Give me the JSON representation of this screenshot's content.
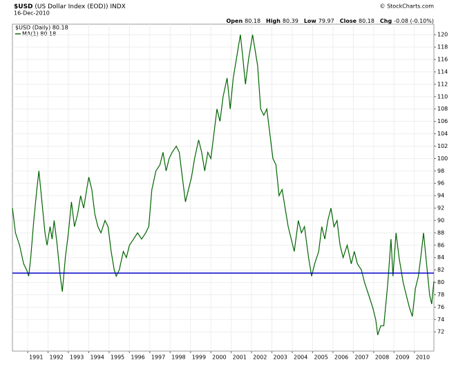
{
  "chart_data": {
    "type": "line",
    "title": "$USD",
    "subtitle": "(US Dollar Index (EOD))",
    "exchange": "INDX",
    "date": "16-Dec-2010",
    "source": "© StockCharts.com",
    "quote": [
      {
        "label": "Open",
        "value": "80.18"
      },
      {
        "label": "High",
        "value": "80.39"
      },
      {
        "label": "Low",
        "value": "79.97"
      },
      {
        "label": "Close",
        "value": "80.18"
      },
      {
        "label": "Chg",
        "value": "-0.08 (-0.10%)"
      }
    ],
    "legend": [
      "$USD (Daily) 80.18",
      "MA(1) 80.18"
    ],
    "grid": true,
    "hline": {
      "value": 81.5,
      "color": "#0000cc"
    },
    "xlim": [
      1990.25,
      2010.96
    ],
    "xticks": [
      1991,
      1992,
      1993,
      1994,
      1995,
      1996,
      1997,
      1998,
      1999,
      2000,
      2001,
      2002,
      2003,
      2004,
      2005,
      2006,
      2007,
      2008,
      2009,
      2010
    ],
    "ylim": [
      68.9,
      121.7
    ],
    "yticks": [
      72,
      74,
      76,
      78,
      80,
      82,
      84,
      86,
      88,
      90,
      92,
      94,
      96,
      98,
      100,
      102,
      104,
      106,
      108,
      110,
      112,
      114,
      116,
      118,
      120
    ],
    "series": [
      {
        "name": "$USD (Daily)",
        "color": "#006400",
        "x": [
          1990.25,
          1990.4,
          1990.6,
          1990.8,
          1990.95,
          1991.05,
          1991.15,
          1991.3,
          1991.45,
          1991.55,
          1991.7,
          1991.85,
          1991.95,
          1992.1,
          1992.2,
          1992.3,
          1992.45,
          1992.6,
          1992.7,
          1992.85,
          1993.0,
          1993.15,
          1993.3,
          1993.45,
          1993.6,
          1993.75,
          1993.9,
          1994.0,
          1994.15,
          1994.3,
          1994.45,
          1994.6,
          1994.8,
          1994.95,
          1995.1,
          1995.25,
          1995.35,
          1995.5,
          1995.7,
          1995.85,
          1996.0,
          1996.2,
          1996.4,
          1996.6,
          1996.8,
          1996.95,
          1997.1,
          1997.3,
          1997.5,
          1997.65,
          1997.8,
          1997.95,
          1998.1,
          1998.3,
          1998.45,
          1998.6,
          1998.75,
          1998.9,
          1999.05,
          1999.2,
          1999.4,
          1999.55,
          1999.7,
          1999.85,
          2000.0,
          2000.15,
          2000.3,
          2000.45,
          2000.6,
          2000.8,
          2000.95,
          2001.1,
          2001.25,
          2001.45,
          2001.55,
          2001.7,
          2001.85,
          2002.05,
          2002.15,
          2002.3,
          2002.45,
          2002.6,
          2002.75,
          2002.9,
          2003.05,
          2003.2,
          2003.35,
          2003.5,
          2003.65,
          2003.8,
          2003.95,
          2004.1,
          2004.3,
          2004.45,
          2004.6,
          2004.8,
          2004.95,
          2005.1,
          2005.3,
          2005.45,
          2005.6,
          2005.75,
          2005.9,
          2006.05,
          2006.2,
          2006.35,
          2006.5,
          2006.7,
          2006.9,
          2007.05,
          2007.2,
          2007.4,
          2007.55,
          2007.75,
          2007.95,
          2008.1,
          2008.2,
          2008.35,
          2008.5,
          2008.7,
          2008.85,
          2008.95,
          2009.1,
          2009.25,
          2009.45,
          2009.6,
          2009.75,
          2009.9,
          2010.05,
          2010.2,
          2010.35,
          2010.45,
          2010.6,
          2010.75,
          2010.85,
          2010.96
        ],
        "values": [
          92,
          88,
          86,
          83,
          82,
          81,
          84,
          90,
          95,
          98,
          93,
          88,
          86,
          89,
          87,
          90,
          86,
          81,
          78.5,
          84,
          88,
          93,
          89,
          91,
          94,
          92,
          95,
          97,
          95,
          91,
          89,
          88,
          90,
          89,
          85,
          82,
          81,
          82,
          85,
          84,
          86,
          87,
          88,
          87,
          88,
          89,
          95,
          98,
          99,
          101,
          98,
          100,
          101,
          102,
          101,
          97,
          93,
          95,
          97,
          100,
          103,
          101,
          98,
          101,
          100,
          104,
          108,
          106,
          110,
          113,
          108,
          113,
          116,
          120,
          117,
          112,
          116,
          120,
          118,
          115,
          108,
          107,
          108,
          104,
          100,
          99,
          94,
          95,
          92,
          89,
          87,
          85,
          90,
          88,
          89,
          84,
          81,
          83,
          85,
          89,
          87,
          90,
          92,
          89,
          90,
          86,
          84,
          86,
          83,
          85,
          83,
          82,
          80,
          78,
          76,
          74,
          71.5,
          73,
          73,
          80,
          87,
          81,
          88,
          84,
          80,
          78,
          76,
          74.5,
          79,
          81,
          85,
          88,
          83,
          78,
          76.5,
          80.18
        ]
      }
    ]
  }
}
